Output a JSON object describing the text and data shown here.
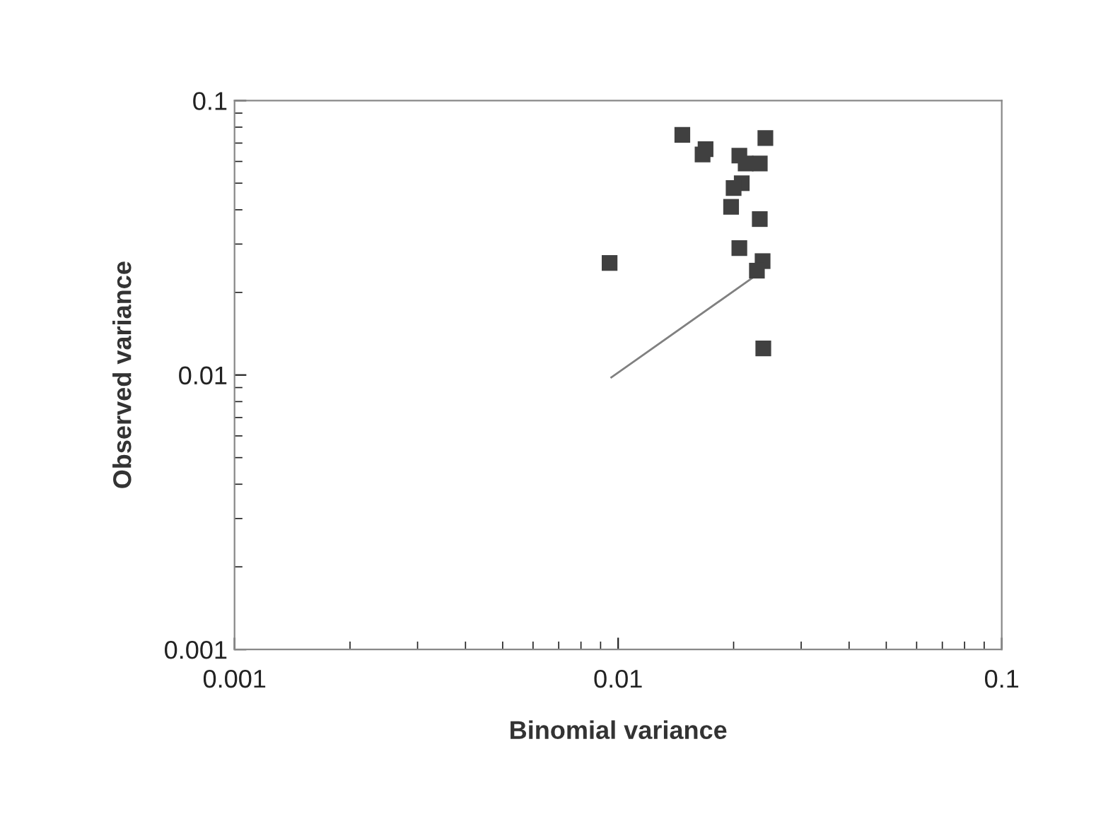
{
  "chart_data": {
    "type": "scatter",
    "xlabel": "Binomial variance",
    "ylabel": "Observed variance",
    "log": "xy",
    "xlim": [
      0.001,
      0.1
    ],
    "ylim": [
      0.001,
      0.1
    ],
    "xticks": [
      0.001,
      0.01,
      0.1
    ],
    "yticks": [
      0.001,
      0.01,
      0.1
    ],
    "grid": false,
    "legend": false,
    "series": [
      {
        "marker": "square",
        "color": "#404040",
        "x": [
          0.0147,
          0.0242,
          0.0169,
          0.0166,
          0.0207,
          0.0215,
          0.0234,
          0.021,
          0.02,
          0.0197,
          0.0234,
          0.0207,
          0.0238,
          0.023,
          0.0095,
          0.0239
        ],
        "values": [
          0.075,
          0.073,
          0.0665,
          0.0636,
          0.063,
          0.059,
          0.059,
          0.05,
          0.048,
          0.041,
          0.037,
          0.029,
          0.026,
          0.024,
          0.0256,
          0.0125
        ]
      },
      {
        "type": "line",
        "marker": "none",
        "line_style": "solid",
        "color": "#808080",
        "x": [
          0.0096,
          0.0225
        ],
        "values": [
          0.0098,
          0.0227
        ]
      }
    ]
  }
}
